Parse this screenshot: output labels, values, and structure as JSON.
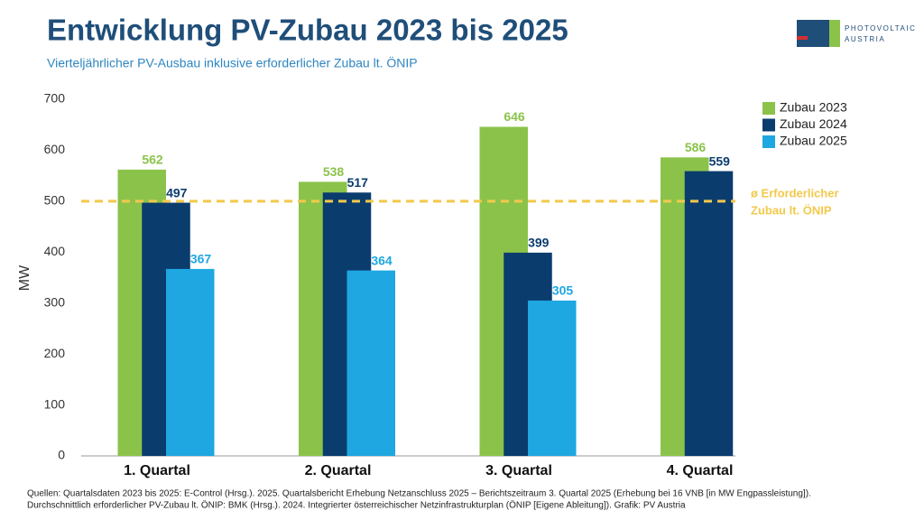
{
  "chart_data": {
    "type": "bar",
    "title": "Entwicklung PV-Zubau 2023 bis 2025",
    "subtitle": "Vierteljährlicher PV-Ausbau inklusive erforderlicher Zubau lt. ÖNIP",
    "y_label": "MW",
    "categories": [
      "1. Quartal",
      "2. Quartal",
      "3. Quartal",
      "4. Quartal"
    ],
    "series": [
      {
        "name": "Zubau 2023",
        "color": "#8bc34a",
        "values": [
          562,
          538,
          646,
          586
        ]
      },
      {
        "name": "Zubau 2024",
        "color": "#0b3c6e",
        "values": [
          497,
          517,
          399,
          559
        ]
      },
      {
        "name": "Zubau 2025",
        "color": "#1ea7e1",
        "values": [
          367,
          364,
          305,
          null
        ]
      }
    ],
    "ylim": [
      0,
      700
    ],
    "yticks": [
      0,
      100,
      200,
      300,
      400,
      500,
      600,
      700
    ],
    "reference_line": {
      "value": 500,
      "color": "#f2c94c",
      "label": [
        "ø Erforderlicher",
        "Zubau lt. ÖNIP"
      ]
    },
    "legend": "top-right",
    "logo": [
      "PHOTOVOLTAIC",
      "AUSTRIA"
    ],
    "source": [
      "Quellen: Quartalsdaten 2023 bis 2025: E-Control (Hrsg.). 2025. Quartalsbericht Erhebung Netzanschluss 2025 – Berichtszeitraum 3. Quartal 2025 (Erhebung bei 16 VNB [in MW Engpassleistung]).",
      "Durchschnittlich erforderlicher PV-Zubau lt. ÖNIP: BMK (Hrsg.). 2024. Integrierter österreichischer Netzinfrastrukturplan (ÖNIP [Eigene Ableitung]). Grafik: PV Austria"
    ]
  }
}
